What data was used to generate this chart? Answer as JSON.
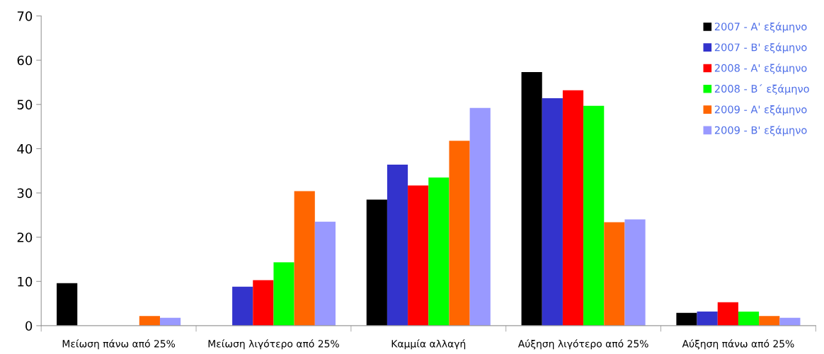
{
  "chart_data": {
    "type": "bar",
    "categories": [
      "Μείωση πάνω από 25%",
      "Μείωση λιγότερο από 25%",
      "Καμμία αλλαγή",
      "Αύξηση λιγότερο από 25%",
      "Αύξηση πάνω από 25%"
    ],
    "series": [
      {
        "name": "2007 - Α' εξάμηνο",
        "color": "#000000",
        "values": [
          9.6,
          0,
          28.5,
          57.3,
          2.9
        ]
      },
      {
        "name": "2007 - Β' εξάμηνο",
        "color": "#3333cc",
        "values": [
          0,
          8.8,
          36.4,
          51.4,
          3.2
        ]
      },
      {
        "name": "2008 - Α' εξάμηνο",
        "color": "#ff0000",
        "values": [
          0,
          10.3,
          31.7,
          53.2,
          5.3
        ]
      },
      {
        "name": "2008 - Β´ εξάμηνο",
        "color": "#00ff00",
        "values": [
          0,
          14.3,
          33.5,
          49.7,
          3.2
        ]
      },
      {
        "name": "2009 - Α' εξάμηνο",
        "color": "#ff6600",
        "values": [
          2.2,
          30.4,
          41.8,
          23.4,
          2.2
        ]
      },
      {
        "name": "2009 - Β' εξάμηνο",
        "color": "#9999ff",
        "values": [
          1.8,
          23.5,
          49.2,
          24.0,
          1.8
        ]
      }
    ],
    "ylim": [
      0,
      70
    ],
    "yticks": [
      0,
      10,
      20,
      30,
      40,
      50,
      60,
      70
    ],
    "grid": false,
    "legend": "top right"
  }
}
